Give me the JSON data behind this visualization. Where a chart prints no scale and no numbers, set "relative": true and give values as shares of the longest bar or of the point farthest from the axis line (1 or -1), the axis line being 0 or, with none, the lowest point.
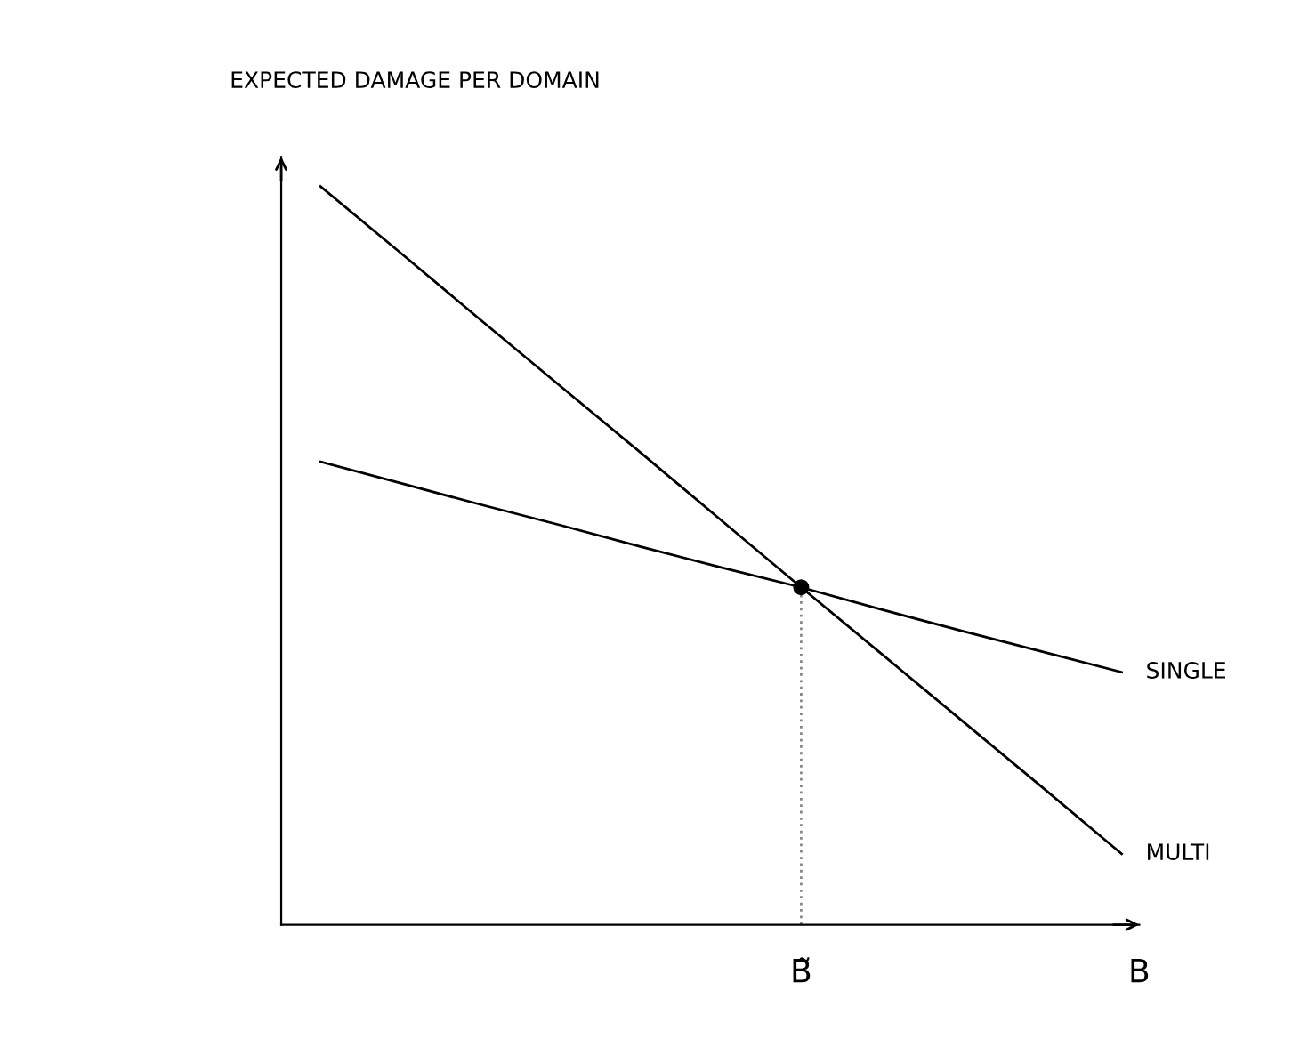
{
  "chart_data": {
    "type": "line",
    "relative": true,
    "ylabel": "EXPECTED DAMAGE PER DOMAIN",
    "xlabel": "B",
    "categories": [
      null,
      null,
      null,
      null,
      null,
      null,
      null,
      null,
      null,
      null,
      null
    ],
    "series": [
      {
        "name": "SINGLE",
        "color": "#000000",
        "values": [
          0.627,
          0.598,
          0.569,
          0.541,
          0.512,
          0.484,
          0.457,
          0.427,
          0.398,
          0.37,
          0.342
        ]
      },
      {
        "name": "MULTI",
        "color": "#000000",
        "values": [
          1,
          0.91,
          0.819,
          0.729,
          0.639,
          0.548,
          0.457,
          0.367,
          0.277,
          0.187,
          0.096
        ]
      }
    ],
    "ref_lines": [
      {
        "axis": "x",
        "label": "B̃",
        "line_style": "dotted",
        "color": "#888888"
      }
    ],
    "legend": false
  }
}
